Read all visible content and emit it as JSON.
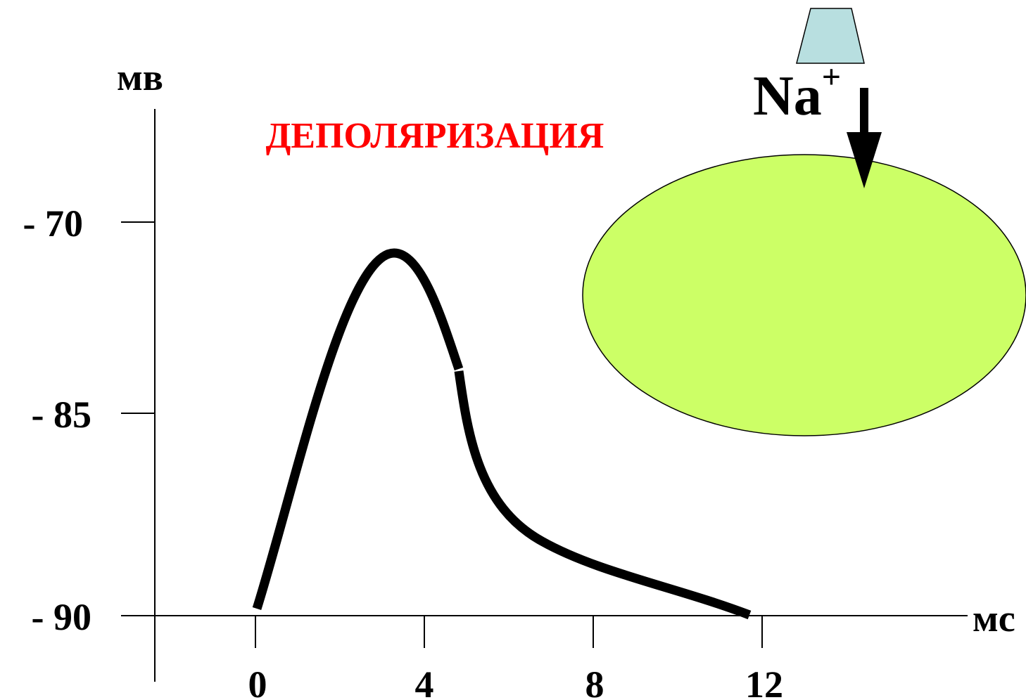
{
  "axes": {
    "y_label": "мв",
    "x_label": "мс",
    "y_tick_labels": [
      "- 70",
      "- 85",
      "- 90"
    ],
    "x_tick_labels": [
      "0",
      "4",
      "8",
      "12"
    ]
  },
  "title": "ДЕПОЛЯРИЗАЦИЯ",
  "ion": {
    "symbol": "Na",
    "charge": "+"
  }
}
